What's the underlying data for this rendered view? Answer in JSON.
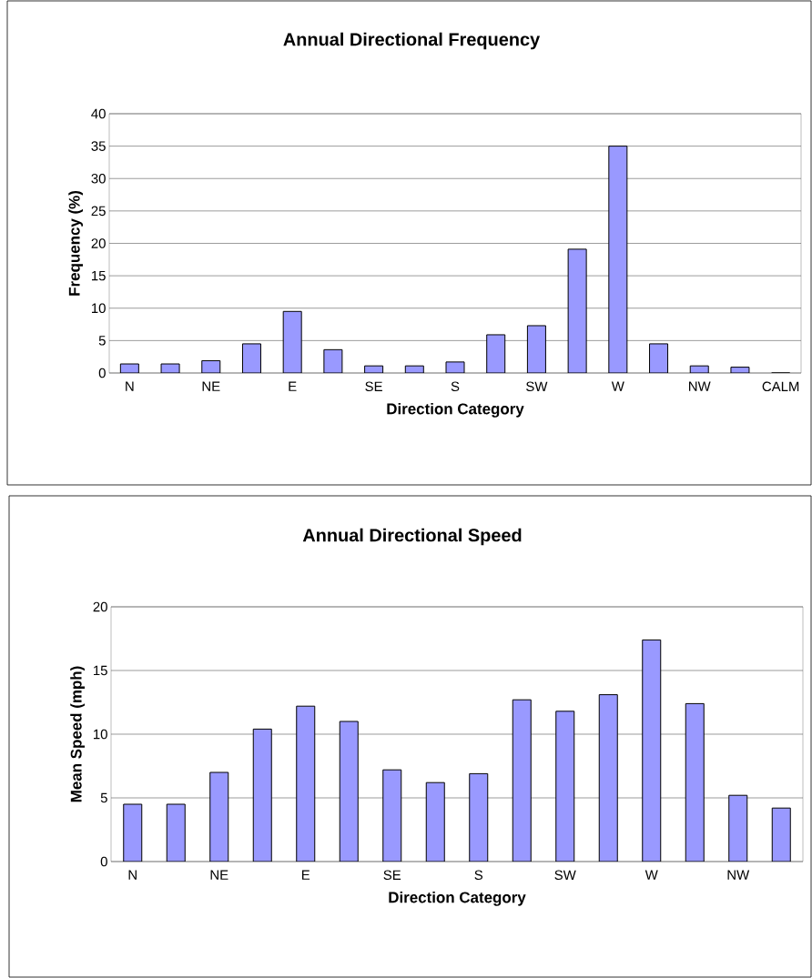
{
  "chart_data": [
    {
      "type": "bar",
      "title": "Annual Directional Frequency",
      "xlabel": "Direction Category",
      "ylabel": "Frequency (%)",
      "categories": [
        "N",
        null,
        "NE",
        null,
        "E",
        null,
        "SE",
        null,
        "S",
        null,
        "SW",
        null,
        "W",
        null,
        "NW",
        null,
        "CALM"
      ],
      "values": [
        1.4,
        1.4,
        1.9,
        4.5,
        9.5,
        3.6,
        1.1,
        1.1,
        1.7,
        5.9,
        7.3,
        19.1,
        35,
        4.5,
        1.1,
        0.9,
        0
      ],
      "color": "#9999ff",
      "ylim": [
        0,
        40
      ],
      "yticks": [
        0,
        5,
        10,
        15,
        20,
        25,
        30,
        35,
        40
      ],
      "grid": "y"
    },
    {
      "type": "bar",
      "title": "Annual Directional Speed",
      "xlabel": "Direction Category",
      "ylabel": "Mean Speed (mph)",
      "categories": [
        "N",
        null,
        "NE",
        null,
        "E",
        null,
        "SE",
        null,
        "S",
        null,
        "SW",
        null,
        "W",
        null,
        "NW",
        null
      ],
      "values": [
        4.5,
        4.5,
        7,
        10.4,
        12.2,
        11,
        7.2,
        6.2,
        6.9,
        12.7,
        11.8,
        13.1,
        17.4,
        12.4,
        5.2,
        4.2
      ],
      "color": "#9999ff",
      "ylim": [
        0,
        20
      ],
      "yticks": [
        0,
        5,
        10,
        15,
        20
      ],
      "grid": "y"
    }
  ]
}
